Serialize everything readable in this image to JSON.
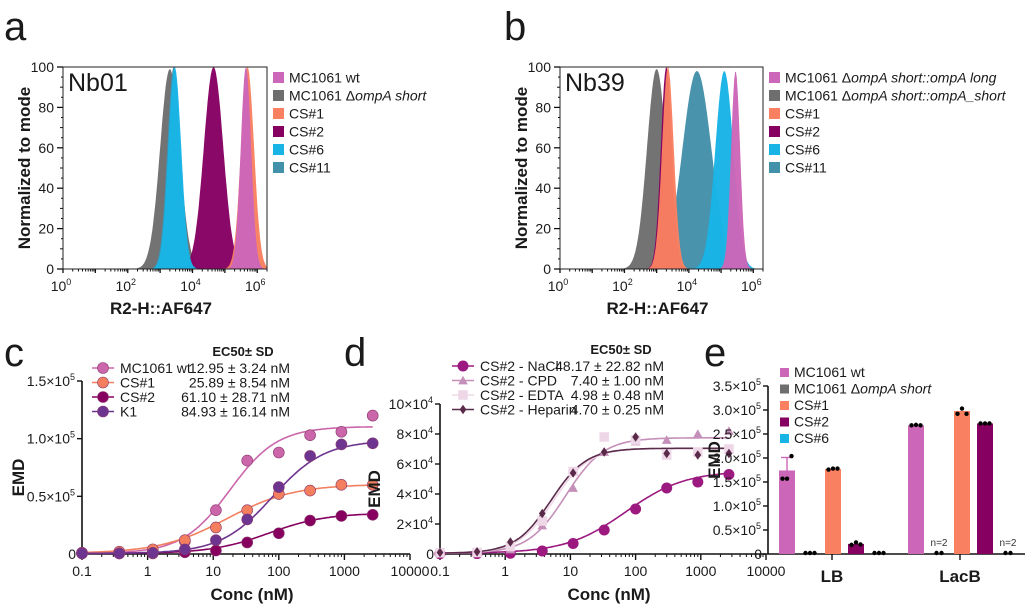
{
  "figure": {
    "panels": [
      "a",
      "b",
      "c",
      "d",
      "e"
    ]
  },
  "chart_data": [
    {
      "id": "a",
      "type": "area",
      "title": "Nb01",
      "xlabel": "R2-H::AF647",
      "ylabel": "Normalized to mode",
      "xscale": "log",
      "xlim": [
        1,
        2000000
      ],
      "ylim": [
        0,
        100
      ],
      "x_ticks": [
        "10^0",
        "10^2",
        "10^4",
        "10^6"
      ],
      "x_tick_values": [
        1,
        100,
        10000,
        1000000
      ],
      "y_ticks": [
        0,
        20,
        40,
        60,
        80,
        100
      ],
      "legend": "right",
      "series": [
        {
          "name": "MC1061 wt",
          "italic": "",
          "color": "#cc66b8",
          "peak_log10": 5.65,
          "width": 0.16,
          "peak": 100
        },
        {
          "name": "MC1061 Δ",
          "italic": "ompA short",
          "color": "#6e6e6e",
          "peak_log10": 3.3,
          "width": 0.3,
          "peak": 99
        },
        {
          "name": "CS#1",
          "italic": "",
          "color": "#f98060",
          "peak_log10": 5.7,
          "width": 0.2,
          "peak": 100
        },
        {
          "name": "CS#2",
          "italic": "",
          "color": "#860062",
          "peak_log10": 4.65,
          "width": 0.3,
          "peak": 100
        },
        {
          "name": "CS#6",
          "italic": "",
          "color": "#18b4e6",
          "peak_log10": 3.45,
          "width": 0.2,
          "peak": 100
        },
        {
          "name": "CS#11",
          "italic": "",
          "color": "#4390aa",
          "peak_log10": 3.42,
          "width": 0.2,
          "peak": 100
        }
      ]
    },
    {
      "id": "b",
      "type": "area",
      "title": "Nb39",
      "xlabel": "R2-H::AF647",
      "ylabel": "Normalized to mode",
      "xscale": "log",
      "xlim": [
        1,
        2000000
      ],
      "ylim": [
        0,
        100
      ],
      "x_ticks": [
        "10^0",
        "10^2",
        "10^4",
        "10^6"
      ],
      "x_tick_values": [
        1,
        100,
        10000,
        1000000
      ],
      "y_ticks": [
        0,
        20,
        40,
        60,
        80,
        100
      ],
      "legend": "right",
      "series": [
        {
          "name": "MC1061 Δ",
          "italic": "ompA short::ompA long",
          "color": "#cc66b8",
          "peak_log10": 5.45,
          "width": 0.14,
          "peak": 98
        },
        {
          "name": "MC1061 Δ",
          "italic": "ompA short::ompA_short",
          "color": "#6e6e6e",
          "peak_log10": 3.0,
          "width": 0.3,
          "peak": 99
        },
        {
          "name": "CS#1",
          "italic": "",
          "color": "#f98060",
          "peak_log10": 3.35,
          "width": 0.18,
          "peak": 100
        },
        {
          "name": "CS#2",
          "italic": "",
          "color": "#860062",
          "peak_log10": 3.3,
          "width": 0.17,
          "peak": 100
        },
        {
          "name": "CS#6",
          "italic": "",
          "color": "#18b4e6",
          "peak_log10": 5.1,
          "width": 0.28,
          "peak": 98
        },
        {
          "name": "CS#11",
          "italic": "",
          "color": "#4390aa",
          "peak_log10": 4.25,
          "width": 0.45,
          "peak": 98
        }
      ]
    },
    {
      "id": "c",
      "type": "scatter",
      "xlabel": "Conc (nM)",
      "ylabel": "EMD",
      "xscale": "log",
      "xlim": [
        0.1,
        10000
      ],
      "ylim": [
        0,
        150000
      ],
      "x_ticks": [
        "0.1",
        "1",
        "10",
        "100",
        "1000",
        "10000"
      ],
      "x_tick_values": [
        0.1,
        1,
        10,
        100,
        1000,
        10000
      ],
      "y_ticks": [
        "0",
        "0.5×10⁵",
        "1.0×10⁵",
        "1.5×10⁵"
      ],
      "y_tick_values": [
        0,
        50000,
        100000,
        150000
      ],
      "legend_header": "EC50± SD",
      "legend": "top-left",
      "x": [
        0.1,
        0.37,
        1.2,
        3.7,
        11,
        33,
        100,
        300,
        900,
        2700
      ],
      "series": [
        {
          "name": "MC1061 wt",
          "ec50_label": "12.95 ± 3.24 nM",
          "color": "#cc66aa",
          "ec50": 18,
          "top": 110000,
          "hill": 1.2,
          "values": [
            1000,
            1000,
            3000,
            11000,
            38000,
            81000,
            88000,
            103000,
            106000,
            120000
          ]
        },
        {
          "name": "CS#1",
          "ec50_label": "25.89 ± 8.54 nM",
          "color": "#f37f5e",
          "ec50": 16,
          "top": 60000,
          "hill": 0.85,
          "values": [
            1000,
            2000,
            4000,
            12000,
            23000,
            38000,
            52000,
            55000,
            60000,
            60000
          ]
        },
        {
          "name": "CS#2",
          "ec50_label": "61.10 ± 28.71 nM",
          "color": "#87005f",
          "ec50": 70,
          "top": 35000,
          "hill": 1.0,
          "values": [
            500,
            500,
            500,
            1500,
            3000,
            10000,
            18000,
            29000,
            33000,
            34000
          ]
        },
        {
          "name": "K1",
          "ec50_label": "84.93 ± 16.14 nM",
          "color": "#6e3590",
          "ec50": 80,
          "top": 98000,
          "hill": 1.1,
          "values": [
            500,
            500,
            1000,
            4000,
            12000,
            30000,
            58000,
            85000,
            95000,
            96000
          ]
        }
      ]
    },
    {
      "id": "d",
      "type": "scatter",
      "xlabel": "Conc (nM)",
      "ylabel": "EMD",
      "xscale": "log",
      "xlim": [
        0.1,
        10000
      ],
      "ylim": [
        0,
        100000
      ],
      "x_ticks": [
        "0.1",
        "1",
        "10",
        "100",
        "1000",
        "10000"
      ],
      "x_tick_values": [
        0.1,
        1,
        10,
        100,
        1000,
        10000
      ],
      "y_ticks": [
        "0",
        "2×10⁴",
        "4×10⁴",
        "6×10⁴",
        "8×10⁴",
        "10×10⁴"
      ],
      "y_tick_values": [
        0,
        20000,
        40000,
        60000,
        80000,
        100000
      ],
      "legend_header": "EC50± SD",
      "legend": "top-left",
      "x": [
        0.1,
        0.37,
        1.2,
        3.7,
        11,
        33,
        100,
        300,
        900,
        2700
      ],
      "series": [
        {
          "name": "CS#2 - NaCl",
          "ec50_label": "48.17 ± 22.82 nM",
          "color": "#9c1a80",
          "marker": "circle",
          "ec50": 70,
          "top": 55000,
          "hill": 0.95,
          "values": [
            200,
            300,
            500,
            2000,
            7000,
            16000,
            30000,
            44000,
            48000,
            53000
          ]
        },
        {
          "name": "CS#2 - CPD",
          "ec50_label": "7.40 ± 1.00 nM",
          "color": "#c48fb8",
          "marker": "triangle",
          "ec50": 8.5,
          "top": 77000,
          "hill": 1.5,
          "values": [
            500,
            800,
            3000,
            19000,
            44000,
            68000,
            75000,
            76000,
            80000,
            82000
          ]
        },
        {
          "name": "CS#2 - EDTA",
          "ec50_label": "4.98 ± 0.48 nM",
          "color": "#eed8e8",
          "marker": "square",
          "ec50": 5.5,
          "top": 70000,
          "hill": 1.6,
          "values": [
            800,
            1000,
            5000,
            22000,
            55000,
            78000,
            76000,
            66000,
            68000,
            70000
          ]
        },
        {
          "name": "CS#2 - Heparin",
          "ec50_label": "4.70 ± 0.25 nM",
          "color": "#5a2a4a",
          "marker": "diamond",
          "ec50": 5.0,
          "top": 70000,
          "hill": 1.6,
          "values": [
            1000,
            1500,
            8000,
            27000,
            54000,
            68000,
            78000,
            67000,
            66000,
            67000
          ]
        }
      ]
    },
    {
      "id": "e",
      "type": "bar",
      "xlabel": "",
      "ylabel": "EMD",
      "ylim": [
        0,
        350000
      ],
      "y_ticks": [
        "0",
        "0.5×10⁵",
        "1.0×10⁵",
        "1.5×10⁵",
        "2.0×10⁵",
        "2.5×10⁵",
        "3.0×10⁵",
        "3.5×10⁵"
      ],
      "y_tick_values": [
        0,
        50000,
        100000,
        150000,
        200000,
        250000,
        300000,
        350000
      ],
      "categories": [
        "LB",
        "LacB"
      ],
      "legend": "top-left",
      "series": [
        {
          "name": "MC1061 wt",
          "italic": "",
          "color": "#cc66b8",
          "values": [
            174000,
            268000
          ],
          "error": [
            27000,
            0
          ],
          "points": [
            [
              157000,
              157000,
              204000
            ],
            [
              268000,
              269000,
              268000
            ]
          ],
          "notes": [
            "",
            ""
          ]
        },
        {
          "name": "MC1061 Δ",
          "italic": "ompA short",
          "color": "#6e6e6e",
          "values": [
            0,
            0
          ],
          "error": [
            0,
            0
          ],
          "points": [
            [
              0,
              0,
              0
            ],
            [
              0,
              0
            ]
          ],
          "notes": [
            "",
            "n=2"
          ]
        },
        {
          "name": "CS#1",
          "italic": "",
          "color": "#f98060",
          "values": [
            177000,
            298000
          ],
          "error": [
            0,
            0
          ],
          "points": [
            [
              176000,
              178000,
              178000
            ],
            [
              292000,
              303000,
              292000
            ]
          ],
          "notes": [
            "",
            ""
          ]
        },
        {
          "name": "CS#2",
          "italic": "",
          "color": "#860062",
          "values": [
            21000,
            272000
          ],
          "error": [
            0,
            0
          ],
          "points": [
            [
              19000,
              24000,
              20000
            ],
            [
              272000,
              272000,
              272000
            ]
          ],
          "notes": [
            "",
            ""
          ]
        },
        {
          "name": "CS#6",
          "italic": "",
          "color": "#18b4e6",
          "values": [
            0,
            0
          ],
          "error": [
            0,
            0
          ],
          "points": [
            [
              0,
              0,
              0
            ],
            [
              0,
              0
            ]
          ],
          "notes": [
            "",
            "n=2"
          ]
        }
      ]
    }
  ]
}
